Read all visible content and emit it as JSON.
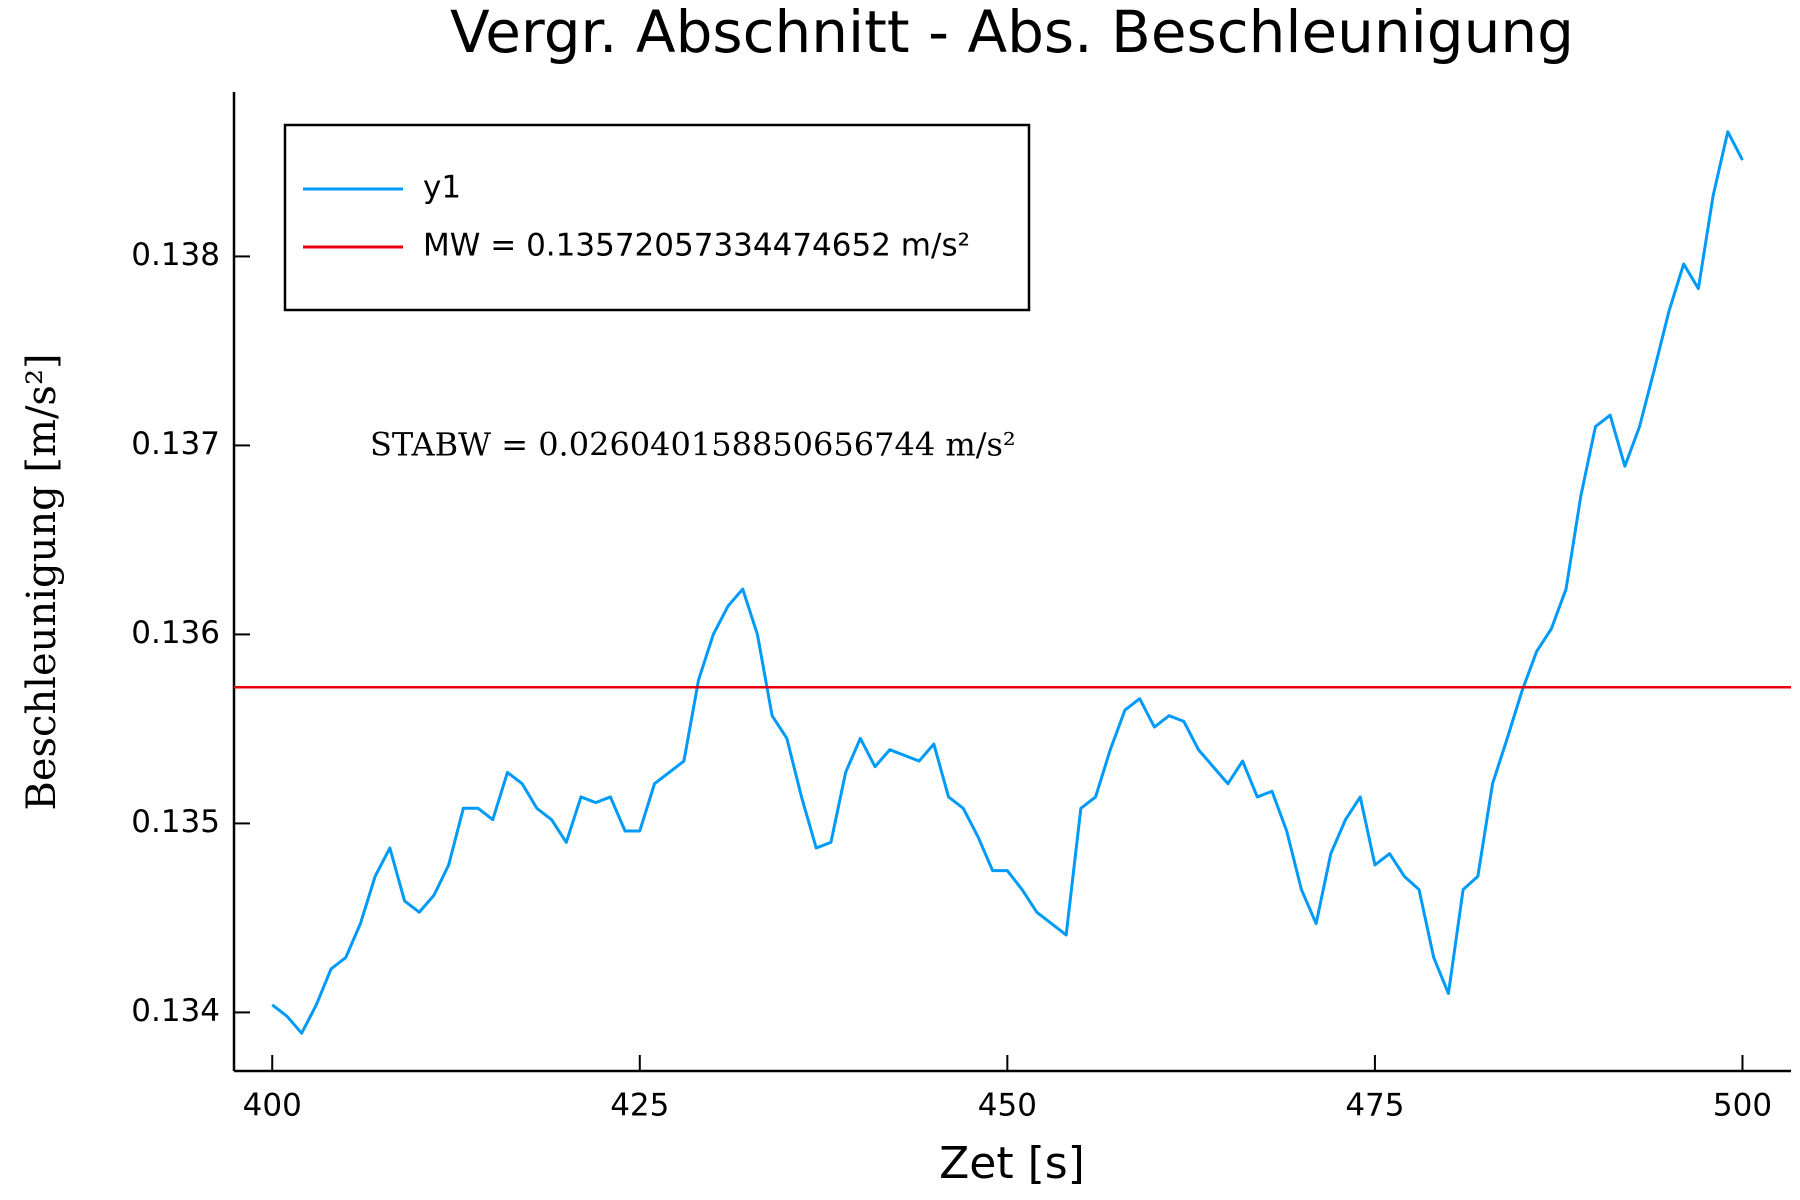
{
  "chart_data": {
    "type": "line",
    "title": "Vergr. Abschnitt - Abs. Beschleunigung",
    "x_label": "Zet [s]",
    "y_label": "Beschleunigung [m/s²]",
    "annotation": "STABW = 0.026040158850656744 m/s²",
    "grid": false,
    "legend_position": "top-left",
    "xlim": [
      397.4,
      503.3
    ],
    "ylim": [
      0.13369,
      0.13887
    ],
    "xticks": [
      400,
      425,
      450,
      475,
      500
    ],
    "yticks": [
      0.134,
      0.135,
      0.136,
      0.137,
      0.138
    ],
    "x": [
      400,
      401,
      402,
      403,
      404,
      405,
      406,
      407,
      408,
      409,
      410,
      411,
      412,
      413,
      414,
      415,
      416,
      417,
      418,
      419,
      420,
      421,
      422,
      423,
      424,
      425,
      426,
      427,
      428,
      429,
      430,
      431,
      432,
      433,
      434,
      435,
      436,
      437,
      438,
      439,
      440,
      441,
      442,
      443,
      444,
      445,
      446,
      447,
      448,
      449,
      450,
      451,
      452,
      453,
      454,
      455,
      456,
      457,
      458,
      459,
      460,
      461,
      462,
      463,
      464,
      465,
      466,
      467,
      468,
      469,
      470,
      471,
      472,
      473,
      474,
      475,
      476,
      477,
      478,
      479,
      480,
      481,
      482,
      483,
      484,
      485,
      486,
      487,
      488,
      489,
      490,
      491,
      492,
      493,
      494,
      495,
      496,
      497,
      498,
      499,
      500
    ],
    "series": [
      {
        "name": "y1",
        "color": "#009af9",
        "values": [
          0.13404,
          0.13398,
          0.13389,
          0.13404,
          0.13423,
          0.13429,
          0.13447,
          0.13472,
          0.13487,
          0.13459,
          0.13453,
          0.13462,
          0.13478,
          0.13508,
          0.13508,
          0.13502,
          0.13527,
          0.13521,
          0.13508,
          0.13502,
          0.1349,
          0.13514,
          0.13511,
          0.13514,
          0.13496,
          0.13496,
          0.13521,
          0.13527,
          0.13533,
          0.13576,
          0.136,
          0.13615,
          0.13624,
          0.136,
          0.13557,
          0.13545,
          0.13514,
          0.13487,
          0.1349,
          0.13527,
          0.13545,
          0.1353,
          0.13539,
          0.13536,
          0.13533,
          0.13542,
          0.13514,
          0.13508,
          0.13493,
          0.13475,
          0.13475,
          0.13465,
          0.13453,
          0.13447,
          0.13441,
          0.13508,
          0.13514,
          0.13539,
          0.1356,
          0.13566,
          0.13551,
          0.13557,
          0.13554,
          0.13539,
          0.1353,
          0.13521,
          0.13533,
          0.13514,
          0.13517,
          0.13496,
          0.13465,
          0.13447,
          0.13484,
          0.13502,
          0.13514,
          0.13478,
          0.13484,
          0.13472,
          0.13465,
          0.13429,
          0.1341,
          0.13465,
          0.13472,
          0.13521,
          0.13545,
          0.1357,
          0.13591,
          0.13603,
          0.13624,
          0.13673,
          0.1371,
          0.13716,
          0.13689,
          0.1371,
          0.1374,
          0.13771,
          0.13796,
          0.13783,
          0.13832,
          0.13866,
          0.13851
        ]
      }
    ],
    "hlines": [
      {
        "name": "MW = 0.13572057334474652 m/s²",
        "color": "#e8000b",
        "value": 0.13572057334474652
      }
    ]
  }
}
